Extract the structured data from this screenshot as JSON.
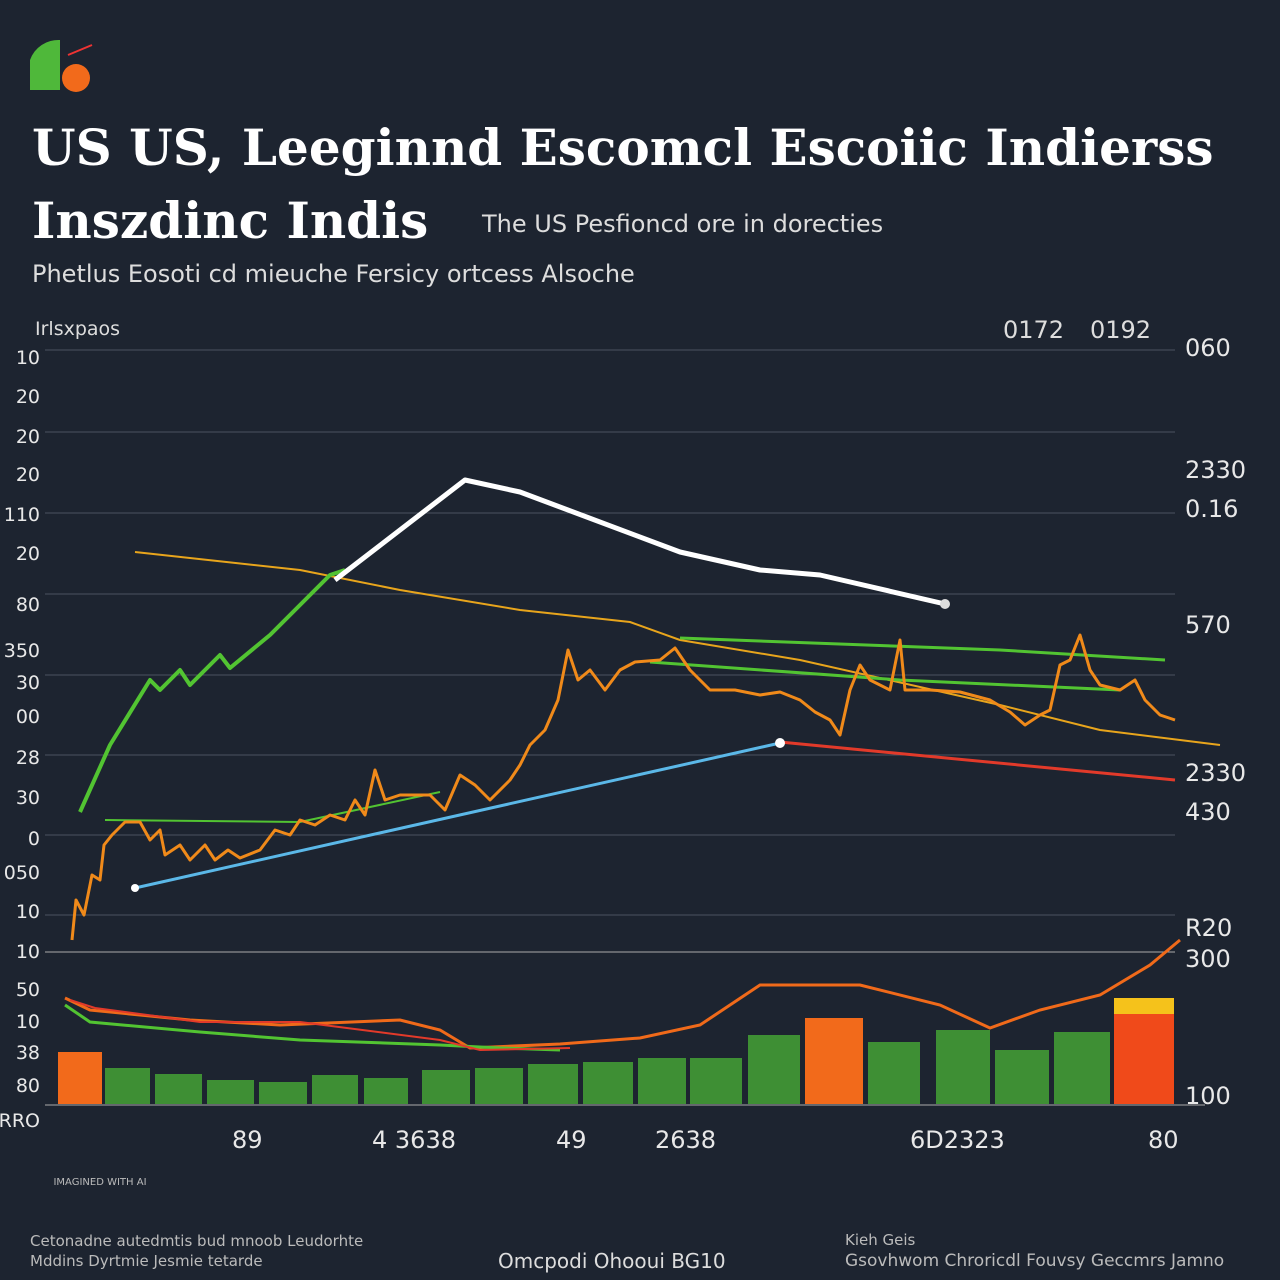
{
  "header": {
    "logo": "",
    "title_line1": "US US, Leeginnd Escomcl Escoiic Indierss",
    "title_line2": "Inszdinc Indis",
    "subtitle": "The US Pesfioncd ore in dorecties",
    "description": "Phetlus Eosoti cd mieuche Fersicy ortcess Alsoche"
  },
  "axis_title": "Irlsxpaos",
  "top_labels": [
    "0172",
    "0192"
  ],
  "left_labels": [
    "10",
    "20",
    "20",
    "20",
    "110",
    "20",
    "80",
    "350",
    "30",
    "00",
    "28",
    "30",
    "0",
    "050",
    "10",
    "10",
    "50",
    "10",
    "38",
    "80",
    "RRO"
  ],
  "right_labels": [
    "060",
    "2330",
    "0.16",
    "570",
    "2330",
    "430",
    "R20",
    "300",
    "100"
  ],
  "bottom_labels": [
    "89",
    "4 3638",
    "49",
    "2638",
    "6D2323",
    "80"
  ],
  "footer": {
    "left_1": "Cetonadne autedmtis bud mnoob Leudorhte",
    "left_2": "Mddins Dyrtmie Jesmie tetarde",
    "center": "Omcpodi Ohooui BG10",
    "right_1": "Kieh Geis",
    "right_2": "Gsovhwom Chroricdl Fouvsy Geccmrs Jamno"
  },
  "watermark": "IMAGINED WITH AI"
}
